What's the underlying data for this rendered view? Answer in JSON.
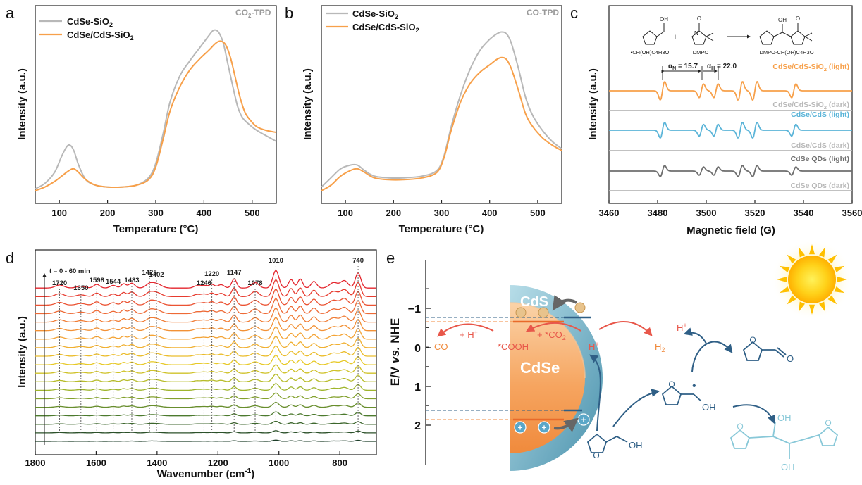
{
  "colors": {
    "gray": "#b8b8b8",
    "orange": "#f7a04a",
    "blue": "#5ab4d8",
    "darkgray": "#6e6e6e",
    "red_arrow": "#e8574a",
    "cds_shell": "#5ba3bd",
    "cdse_core": "#f6a560",
    "dark_blue": "#2f5f86",
    "light_blue": "#88c8d8",
    "sun": "#ffc000"
  },
  "chart_data": [
    {
      "panel": "a",
      "type": "line",
      "annotation": "CO2-TPD",
      "annotation_main": "CO",
      "annotation_sub": "2",
      "annotation_tail": "-TPD",
      "xlabel": "Temperature (°C)",
      "ylabel": "Intensity (a.u.)",
      "xlim": [
        50,
        550
      ],
      "xticks": [
        100,
        200,
        300,
        400,
        500
      ],
      "legend_position": "top-left",
      "series": [
        {
          "name": "CdSe-SiO2",
          "name_main": "CdSe-SiO",
          "name_sub": "2",
          "color": "gray",
          "x": [
            50,
            70,
            90,
            105,
            115,
            122,
            130,
            140,
            155,
            175,
            200,
            230,
            260,
            285,
            300,
            315,
            330,
            350,
            370,
            390,
            410,
            420,
            430,
            440,
            450,
            460,
            470,
            480,
            495,
            510,
            530,
            550
          ],
          "y": [
            0.08,
            0.11,
            0.17,
            0.26,
            0.31,
            0.32,
            0.29,
            0.21,
            0.13,
            0.1,
            0.09,
            0.09,
            0.1,
            0.14,
            0.22,
            0.38,
            0.56,
            0.7,
            0.78,
            0.85,
            0.92,
            0.95,
            0.94,
            0.88,
            0.76,
            0.64,
            0.53,
            0.47,
            0.43,
            0.4,
            0.37,
            0.34
          ]
        },
        {
          "name": "CdSe/CdS-SiO2",
          "name_main": "CdSe/CdS-SiO",
          "name_sub": "2",
          "color": "orange",
          "x": [
            50,
            70,
            90,
            105,
            120,
            130,
            140,
            155,
            175,
            200,
            230,
            260,
            285,
            300,
            315,
            330,
            350,
            370,
            390,
            410,
            425,
            435,
            445,
            455,
            465,
            475,
            485,
            495,
            510,
            530,
            550
          ],
          "y": [
            0.07,
            0.09,
            0.12,
            0.15,
            0.18,
            0.19,
            0.17,
            0.13,
            0.1,
            0.09,
            0.09,
            0.1,
            0.13,
            0.2,
            0.35,
            0.51,
            0.64,
            0.73,
            0.79,
            0.84,
            0.88,
            0.89,
            0.87,
            0.8,
            0.69,
            0.58,
            0.5,
            0.46,
            0.42,
            0.4,
            0.39
          ]
        }
      ]
    },
    {
      "panel": "b",
      "type": "line",
      "annotation": "CO-TPD",
      "xlabel": "Temperature (°C)",
      "ylabel": "Intensity (a.u.)",
      "xlim": [
        50,
        550
      ],
      "xticks": [
        100,
        200,
        300,
        400,
        500
      ],
      "legend_position": "top-left",
      "series": [
        {
          "name": "CdSe-SiO2",
          "name_main": "CdSe-SiO",
          "name_sub": "2",
          "color": "gray",
          "x": [
            50,
            70,
            90,
            110,
            125,
            140,
            160,
            190,
            220,
            260,
            290,
            305,
            320,
            340,
            360,
            380,
            400,
            415,
            425,
            435,
            445,
            460,
            475,
            490,
            510,
            530,
            550
          ],
          "y": [
            0.09,
            0.14,
            0.19,
            0.21,
            0.21,
            0.18,
            0.15,
            0.14,
            0.14,
            0.15,
            0.18,
            0.26,
            0.42,
            0.6,
            0.74,
            0.84,
            0.9,
            0.93,
            0.94,
            0.93,
            0.88,
            0.74,
            0.58,
            0.48,
            0.4,
            0.34,
            0.3
          ]
        },
        {
          "name": "CdSe/CdS-SiO2",
          "name_main": "CdSe/CdS-SiO",
          "name_sub": "2",
          "color": "orange",
          "x": [
            50,
            70,
            90,
            110,
            125,
            140,
            160,
            190,
            220,
            260,
            290,
            305,
            320,
            340,
            360,
            380,
            400,
            415,
            425,
            435,
            445,
            460,
            475,
            490,
            510,
            530,
            550
          ],
          "y": [
            0.07,
            0.1,
            0.15,
            0.18,
            0.19,
            0.17,
            0.14,
            0.13,
            0.13,
            0.14,
            0.17,
            0.25,
            0.4,
            0.56,
            0.66,
            0.72,
            0.76,
            0.79,
            0.8,
            0.79,
            0.74,
            0.62,
            0.49,
            0.42,
            0.36,
            0.32,
            0.29
          ]
        }
      ]
    },
    {
      "panel": "c",
      "type": "line",
      "xlabel": "Magnetic field (G)",
      "ylabel": "Intensity (a.u.)",
      "xlim": [
        3460,
        3560
      ],
      "xticks": [
        3460,
        3480,
        3500,
        3520,
        3540,
        3560
      ],
      "peak_fields": [
        3482,
        3498,
        3504,
        3514,
        3520,
        3536
      ],
      "splitting_labels": {
        "aN_main": "α",
        "aN_sub": "N",
        "aN_val": " = 15.7",
        "aH_main": "α",
        "aH_sub": "H",
        "aH_val": " = 22.0"
      },
      "scheme_labels": {
        "radical": "•CH(OH)C4H3O",
        "plus": "+",
        "dmpo": "DMPO",
        "adduct": "DMPO-CH(OH)C4H3O",
        "oh": "OH",
        "o_minus": "O",
        "n_plus": "N"
      },
      "series": [
        {
          "name": "CdSe/CdS-SiO2 (light)",
          "name_main": "CdSe/CdS-SiO",
          "name_sub": "2",
          "name_tail": " (light)",
          "color": "orange",
          "amplitude": 1.0
        },
        {
          "name": "CdSe/CdS-SiO2 (dark)",
          "name_main": "CdSe/CdS-SiO",
          "name_sub": "2",
          "name_tail": " (dark)",
          "color": "gray",
          "amplitude": 0.0
        },
        {
          "name": "CdSe/CdS (light)",
          "name_main": "CdSe/CdS (light)",
          "name_sub": "",
          "name_tail": "",
          "color": "blue",
          "amplitude": 0.85
        },
        {
          "name": "CdSe/CdS (dark)",
          "name_main": "CdSe/CdS (dark)",
          "name_sub": "",
          "name_tail": "",
          "color": "gray",
          "amplitude": 0.0
        },
        {
          "name": "CdSe QDs (light)",
          "name_main": "CdSe QDs (light)",
          "name_sub": "",
          "name_tail": "",
          "color": "darkgray",
          "amplitude": 0.6
        },
        {
          "name": "CdSe QDs (dark)",
          "name_main": "CdSe QDs (dark)",
          "name_sub": "",
          "name_tail": "",
          "color": "gray",
          "amplitude": 0.0
        }
      ]
    },
    {
      "panel": "d",
      "type": "line",
      "xlabel": "Wavenumber (cm⁻¹)",
      "xlabel_main": "Wavenumber (cm",
      "xlabel_sup": "-1",
      "xlabel_tail": ")",
      "ylabel": "Intensity (a.u.)",
      "xlim": [
        1800,
        680
      ],
      "xticks": [
        1800,
        1600,
        1400,
        1200,
        1000,
        800
      ],
      "time_label": "t = 0 - 60 min",
      "curve_count": 19,
      "color_gradient": [
        "#1c3d28",
        "#4c7a2e",
        "#9fb52c",
        "#e7c928",
        "#f4a436",
        "#ee6a36",
        "#e4242c"
      ],
      "peaks": [
        1720,
        1650,
        1598,
        1544,
        1483,
        1425,
        1402,
        1246,
        1220,
        1147,
        1078,
        1010,
        740
      ],
      "peak_labels": [
        "1720",
        "1650",
        "1598",
        "1544",
        "1483",
        "1425",
        "1402",
        "1246",
        "1220",
        "1147",
        "1078",
        "1010",
        "740"
      ]
    }
  ],
  "scheme": {
    "panel": "e",
    "ylabel": "E/V vs. NHE",
    "ylabel_e": "E/V ",
    "ylabel_vs": "vs.",
    "ylabel_nhe": " NHE",
    "yticks": [
      "−1",
      "0",
      "1",
      "2"
    ],
    "shell_label": "CdS",
    "core_label": "CdSe",
    "labels": {
      "co": "CO",
      "h_plus_co": "+ H",
      "h_plus_sup": "+",
      "cooh": "*COOH",
      "co2": "+ *CO",
      "co2_sub": "2",
      "h_plus_core": "H",
      "h2": "H",
      "h2_sub": "2",
      "h_plus_top": "H",
      "oh": "OH",
      "o": "O",
      "radical_dot": "•"
    }
  }
}
